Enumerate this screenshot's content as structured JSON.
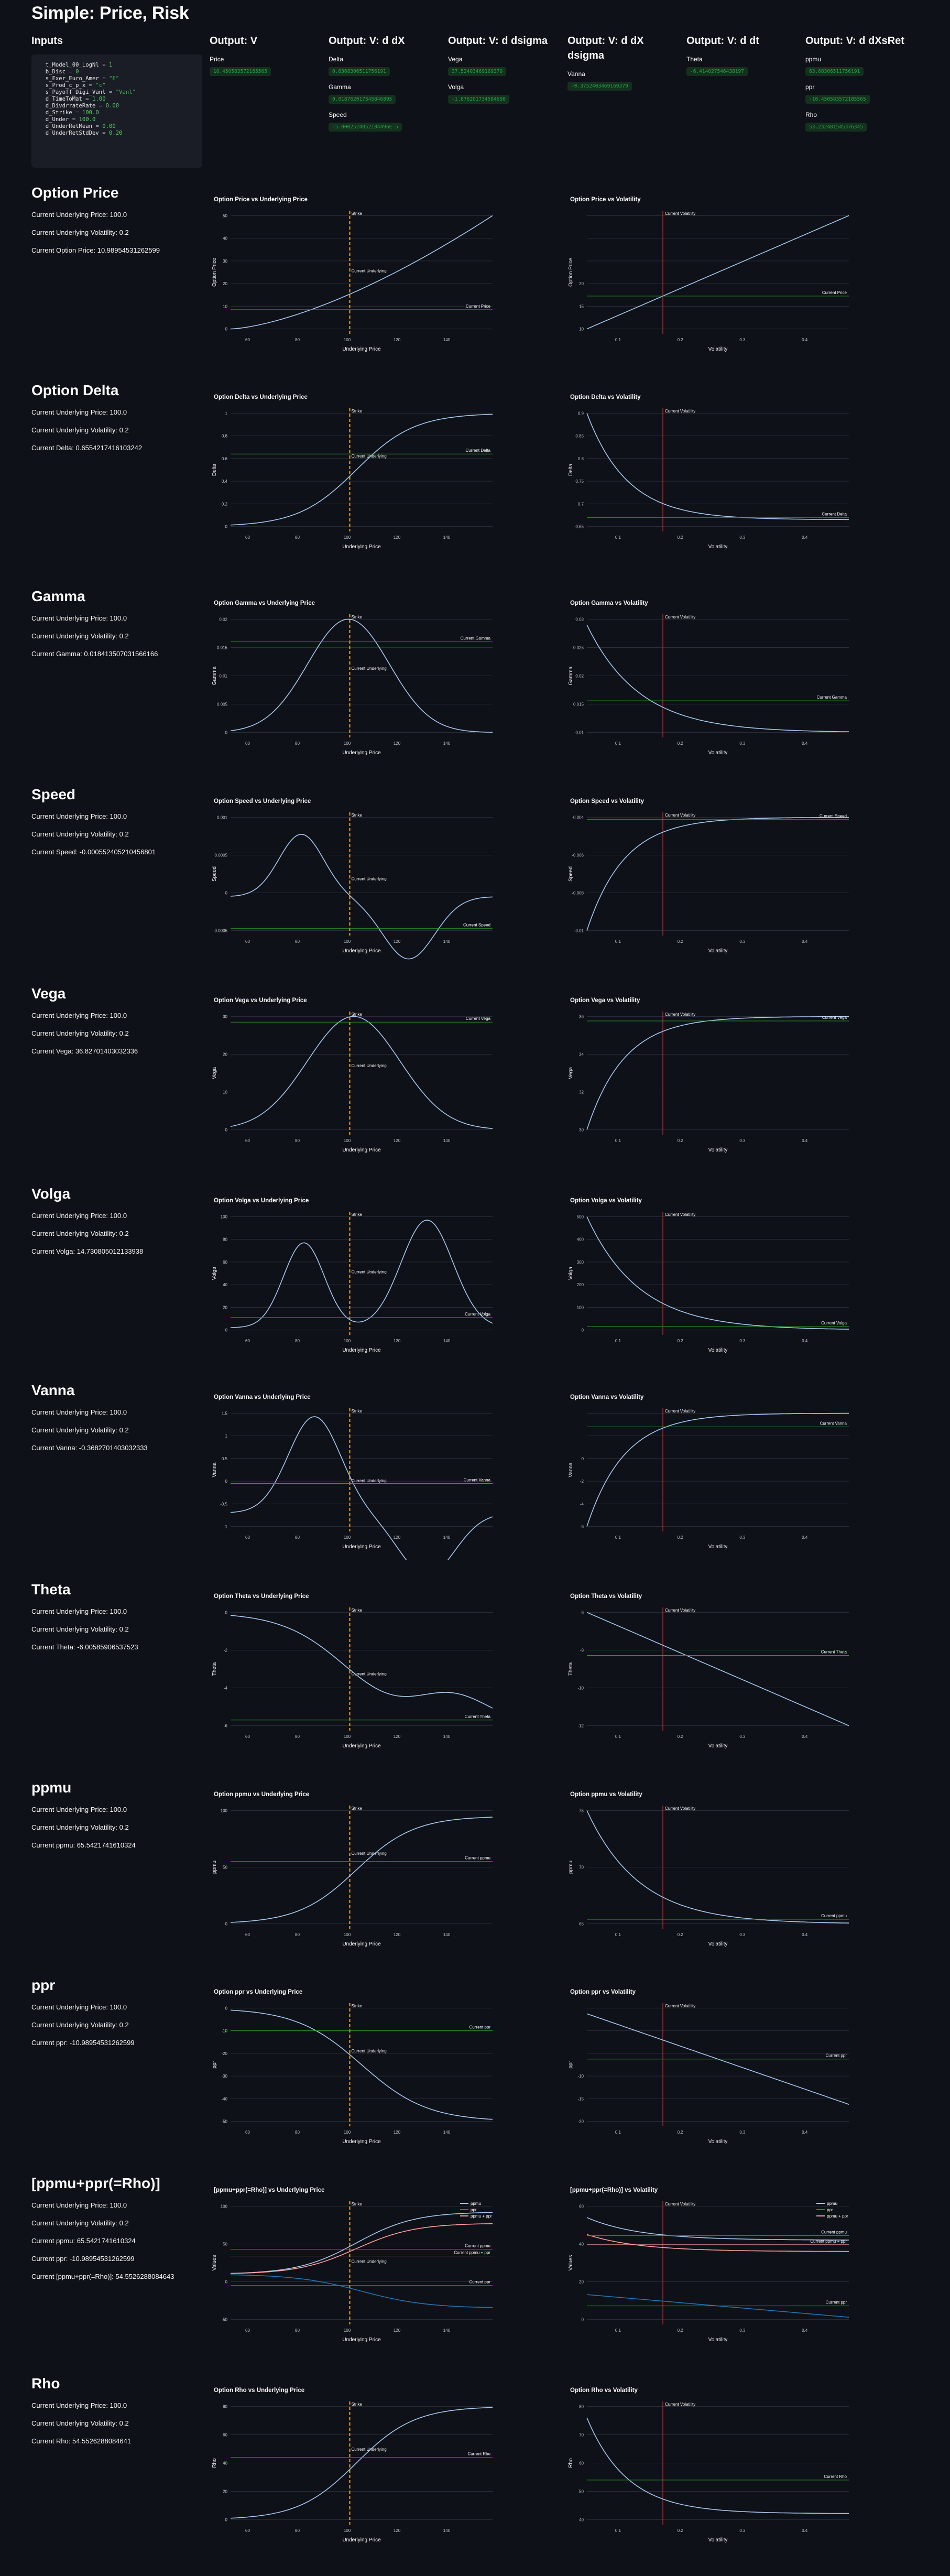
{
  "page": {
    "title": "Simple: Price, Risk"
  },
  "inputs": {
    "title": "Inputs",
    "code": [
      [
        [
          "k",
          "  t_Model_00_LogNl"
        ],
        [
          "o",
          " = "
        ],
        [
          "n",
          "1"
        ]
      ],
      [
        [
          "k",
          "  b_Disc"
        ],
        [
          "o",
          " = "
        ],
        [
          "n",
          "0"
        ]
      ],
      [
        [
          "k",
          "  s_Exer_Euro_Amer"
        ],
        [
          "o",
          " = "
        ],
        [
          "s",
          "\"E\""
        ]
      ],
      [
        [
          "k",
          "  s_Prod_c_p_x"
        ],
        [
          "o",
          " = "
        ],
        [
          "s",
          "\"c\""
        ]
      ],
      [
        [
          "k",
          "  s_Payoff_Digi_Vanl"
        ],
        [
          "o",
          " = "
        ],
        [
          "s",
          "\"Vanl\""
        ]
      ],
      [
        [
          "k",
          "  d_TimeToMat"
        ],
        [
          "o",
          " = "
        ],
        [
          "n",
          "1.00"
        ]
      ],
      [
        [
          "k",
          "  d_DivdrrateRate"
        ],
        [
          "o",
          " = "
        ],
        [
          "n",
          "0.00"
        ]
      ],
      [
        [
          "k",
          "  d_Strike"
        ],
        [
          "o",
          " = "
        ],
        [
          "n",
          "100.0"
        ]
      ],
      [
        [
          "k",
          "  d_Under"
        ],
        [
          "o",
          " = "
        ],
        [
          "n",
          "100.0"
        ]
      ],
      [
        [
          "k",
          "  d_UnderRetMean"
        ],
        [
          "o",
          " = "
        ],
        [
          "n",
          "0.00"
        ]
      ],
      [
        [
          "k",
          "  d_UnderRetStdDev"
        ],
        [
          "o",
          " = "
        ],
        [
          "n",
          "0.20"
        ]
      ]
    ]
  },
  "outputs": [
    {
      "title": "Output: V",
      "items": [
        {
          "label": "Price",
          "value": "10.450583572185565"
        }
      ]
    },
    {
      "title": "Output: V: d dX",
      "items": [
        {
          "label": "Delta",
          "value": "0.6368306511756191"
        },
        {
          "label": "Gamma",
          "value": "0.018762017345846895"
        },
        {
          "label": "Speed",
          "value": "-5.0002524052104496E-5"
        }
      ]
    },
    {
      "title": "Output: V: d dsigma",
      "items": [
        {
          "label": "Vega",
          "value": "37.52403469169379"
        },
        {
          "label": "Volga",
          "value": "-1.876201734584698"
        }
      ]
    },
    {
      "title": "Output: V: d dX dsigma",
      "items": [
        {
          "label": "Vanna",
          "value": "-0.3752403469169379"
        }
      ]
    },
    {
      "title": "Output: V: d dt",
      "items": [
        {
          "label": "Theta",
          "value": "-6.414027546438197"
        }
      ]
    },
    {
      "title": "Output: V: d dXsRet",
      "items": [
        {
          "label": "ppmu",
          "value": "63.68306511756191"
        },
        {
          "label": "ppr",
          "value": "-10.450583572185565"
        },
        {
          "label": "Rho",
          "value": "53.232481545376345"
        }
      ]
    }
  ],
  "sections": [
    {
      "title": "Option Price",
      "lines": [
        "Current Underlying Price: 100.0",
        "Current Underlying Volatility: 0.2",
        "Current Option Price: 10.98954531262599"
      ],
      "greekLabel": "Current Price",
      "left": {
        "title": "Option Price vs Underlying Price",
        "xlabel": "Underlying Price",
        "ylabel": "Option Price"
      },
      "right": {
        "title": "Option Price vs Volatility",
        "xlabel": "Volatility",
        "ylabel": "Option Price"
      }
    },
    {
      "title": "Option Delta",
      "lines": [
        "Current Underlying Price: 100.0",
        "Current Underlying Volatility: 0.2",
        "Current Delta: 0.6554217416103242"
      ],
      "greekLabel": "Current Delta",
      "left": {
        "title": "Option Delta vs Underlying Price",
        "xlabel": "Underlying Price",
        "ylabel": "Delta"
      },
      "right": {
        "title": "Option Delta vs Volatility",
        "xlabel": "Volatility",
        "ylabel": "Delta"
      }
    },
    {
      "title": "Gamma",
      "lines": [
        "Current Underlying Price: 100.0",
        "Current Underlying Volatility: 0.2",
        "Current Gamma: 0.018413507031566166"
      ],
      "greekLabel": "Current Gamma",
      "left": {
        "title": "Option Gamma vs Underlying Price",
        "xlabel": "Underlying Price",
        "ylabel": "Gamma"
      },
      "right": {
        "title": "Option Gamma vs Volatility",
        "xlabel": "Volatility",
        "ylabel": "Gamma"
      }
    },
    {
      "title": "Speed",
      "lines": [
        "Current Underlying Price: 100.0",
        "Current Underlying Volatility: 0.2",
        "Current Speed: -0.000552405210456801"
      ],
      "greekLabel": "Current Speed",
      "left": {
        "title": "Option Speed vs Underlying Price",
        "xlabel": "Underlying Price",
        "ylabel": "Speed"
      },
      "right": {
        "title": "Option Speed vs Volatility",
        "xlabel": "Volatility",
        "ylabel": "Speed"
      }
    },
    {
      "title": "Vega",
      "lines": [
        "Current Underlying Price: 100.0",
        "Current Underlying Volatility: 0.2",
        "Current Vega: 36.82701403032336"
      ],
      "greekLabel": "Current Vega",
      "left": {
        "title": "Option Vega vs Underlying Price",
        "xlabel": "Underlying Price",
        "ylabel": "Vega"
      },
      "right": {
        "title": "Option Vega vs Volatility",
        "xlabel": "Volatility",
        "ylabel": "Vega"
      }
    },
    {
      "title": "Volga",
      "lines": [
        "Current Underlying Price: 100.0",
        "Current Underlying Volatility: 0.2",
        "Current Volga: 14.730805012133938"
      ],
      "greekLabel": "Current Volga",
      "left": {
        "title": "Option Volga vs Underlying Price",
        "xlabel": "Underlying Price",
        "ylabel": "Volga"
      },
      "right": {
        "title": "Option Volga vs Volatility",
        "xlabel": "Volatility",
        "ylabel": "Volga"
      }
    },
    {
      "title": "Vanna",
      "lines": [
        "Current Underlying Price: 100.0",
        "Current Underlying Volatility: 0.2",
        "Current Vanna: -0.3682701403032333"
      ],
      "greekLabel": "Current Vanna",
      "left": {
        "title": "Option Vanna vs Underlying Price",
        "xlabel": "Underlying Price",
        "ylabel": "Vanna"
      },
      "right": {
        "title": "Option Vanna vs Volatility",
        "xlabel": "Volatility",
        "ylabel": "Vanna"
      }
    },
    {
      "title": "Theta",
      "lines": [
        "Current Underlying Price: 100.0",
        "Current Underlying Volatility: 0.2",
        "Current Theta: -6.00585906537523"
      ],
      "greekLabel": "Current Theta",
      "left": {
        "title": "Option Theta vs Underlying Price",
        "xlabel": "Underlying Price",
        "ylabel": "Theta"
      },
      "right": {
        "title": "Option Theta vs Volatility",
        "xlabel": "Volatility",
        "ylabel": "Theta"
      }
    },
    {
      "title": "ppmu",
      "lines": [
        "Current Underlying Price: 100.0",
        "Current Underlying Volatility: 0.2",
        "Current ppmu: 65.5421741610324"
      ],
      "greekLabel": "Current ppmu",
      "left": {
        "title": "Option ppmu vs Underlying Price",
        "xlabel": "Underlying Price",
        "ylabel": "ppmu"
      },
      "right": {
        "title": "Option ppmu vs Volatility",
        "xlabel": "Volatility",
        "ylabel": "ppmu"
      }
    },
    {
      "title": "ppr",
      "lines": [
        "Current Underlying Price: 100.0",
        "Current Underlying Volatility: 0.2",
        "Current ppr: -10.98954531262599"
      ],
      "greekLabel": "Current ppr",
      "left": {
        "title": "Option ppr vs Underlying Price",
        "xlabel": "Underlying Price",
        "ylabel": "ppr"
      },
      "right": {
        "title": "Option ppr vs Volatility",
        "xlabel": "Volatility",
        "ylabel": "ppr"
      }
    },
    {
      "title": "[ppmu+ppr(=Rho)]",
      "lines": [
        "Current Underlying Price: 100.0",
        "Current Underlying Volatility: 0.2",
        "Current ppmu: 65.5421741610324",
        "Current ppr: -10.98954531262599",
        "Current [ppmu+ppr(=Rho)]: 54.5526288084643"
      ],
      "greekLabel": "Current ppmu",
      "left": {
        "title": "[ppmu+ppr(=Rho)] vs Underlying Price",
        "xlabel": "Underlying Price",
        "ylabel": "Values"
      },
      "right": {
        "title": "[ppmu+ppr(=Rho)] vs Volatility",
        "xlabel": "Volatility",
        "ylabel": "Values"
      },
      "legend": [
        "ppmu",
        "ppr",
        "ppmu + ppr"
      ],
      "extraLabels": [
        "Current ppmu",
        "Current ppr",
        "Current ppmu + ppr"
      ]
    },
    {
      "title": "Rho",
      "lines": [
        "Current Underlying Price: 100.0",
        "Current Underlying Volatility: 0.2",
        "Current Rho: 54.5526288084641"
      ],
      "greekLabel": "Current Rho",
      "left": {
        "title": "Option Rho vs Underlying Price",
        "xlabel": "Underlying Price",
        "ylabel": "Rho"
      },
      "right": {
        "title": "Option Rho vs Volatility",
        "xlabel": "Volatility",
        "ylabel": "Rho"
      }
    }
  ],
  "annotations": {
    "strike": "Strike",
    "current_underlying": "Current Underlying",
    "current_volatility": "Current Volatility"
  },
  "colors": {
    "line": "#a8c8f0",
    "strike": "#f5a623",
    "current": "#2ca02c",
    "vol": "#d62728",
    "ppmu": "#a8c8f0",
    "ppr": "#1f77b4",
    "sum": "#ff9f9f"
  },
  "chart_data": [
    {
      "type": "line",
      "id": "price",
      "x_left": [
        60,
        150
      ],
      "xticks_left": [
        60,
        80,
        100,
        120,
        140
      ],
      "yticks_left": [
        0,
        10,
        20,
        30,
        40,
        50
      ],
      "xticks_right": [
        0.1,
        0.2,
        0.3,
        0.4
      ],
      "yticks_right": [
        10,
        15,
        20
      ]
    },
    {
      "type": "line",
      "id": "delta",
      "xticks_left": [
        60,
        80,
        100,
        120,
        140
      ],
      "yticks_left": [
        0,
        0.2,
        0.4,
        0.6,
        0.8,
        1
      ],
      "xticks_right": [
        0.1,
        0.2,
        0.3,
        0.4
      ],
      "yticks_right": [
        0.65,
        0.7,
        0.75,
        0.8,
        0.85,
        0.9
      ]
    },
    {
      "type": "line",
      "id": "gamma",
      "xticks_left": [
        60,
        80,
        100,
        120,
        140
      ],
      "yticks_left": [
        0,
        0.005,
        0.01,
        0.015,
        0.02
      ],
      "xticks_right": [
        0.1,
        0.2,
        0.3,
        0.4
      ],
      "yticks_right": [
        0.01,
        0.015,
        0.02,
        0.025,
        0.03,
        0.035
      ]
    },
    {
      "type": "line",
      "id": "speed",
      "xticks_left": [
        60,
        80,
        100,
        120,
        140
      ],
      "yticks_left": [
        -0.0005,
        0,
        0.0005,
        0.001
      ],
      "xticks_right": [
        0.1,
        0.2,
        0.3,
        0.4
      ],
      "yticks_right": [
        -0.01,
        -0.008,
        -0.006,
        -0.004,
        -0.002,
        0
      ]
    },
    {
      "type": "line",
      "id": "vega",
      "xticks_left": [
        60,
        80,
        100,
        120,
        140
      ],
      "yticks_left": [
        0,
        10,
        20,
        30
      ],
      "xticks_right": [
        0.1,
        0.2,
        0.3,
        0.4
      ],
      "yticks_right": [
        30,
        32,
        34,
        36,
        38
      ]
    },
    {
      "type": "line",
      "id": "volga",
      "xticks_left": [
        60,
        80,
        100,
        120,
        140
      ],
      "yticks_left": [
        0,
        20,
        40,
        60,
        80,
        100
      ],
      "xticks_right": [
        0.1,
        0.2,
        0.3,
        0.4
      ],
      "yticks_right": [
        0,
        100,
        200,
        300,
        400,
        500
      ]
    },
    {
      "type": "line",
      "id": "vanna",
      "xticks_left": [
        60,
        80,
        100,
        120,
        140
      ],
      "yticks_left": [
        -1,
        -0.5,
        0,
        0.5,
        1,
        1.5
      ],
      "xticks_right": [
        0.1,
        0.2,
        0.3,
        0.4
      ],
      "yticks_right": [
        -6,
        -4,
        -2,
        0
      ]
    },
    {
      "type": "line",
      "id": "theta",
      "xticks_left": [
        60,
        80,
        100,
        120,
        140
      ],
      "yticks_left": [
        -6,
        -4,
        -2,
        0
      ],
      "xticks_right": [
        0.1,
        0.2,
        0.3,
        0.4
      ],
      "yticks_right": [
        -12,
        -10,
        -8,
        -6,
        -4,
        -2
      ]
    },
    {
      "type": "line",
      "id": "ppmu",
      "xticks_left": [
        60,
        80,
        100,
        120,
        140
      ],
      "yticks_left": [
        0,
        50,
        100
      ],
      "xticks_right": [
        0.1,
        0.2,
        0.3,
        0.4
      ],
      "yticks_right": [
        65,
        70,
        75,
        80,
        85,
        90
      ]
    },
    {
      "type": "line",
      "id": "ppr",
      "xticks_left": [
        60,
        80,
        100,
        120,
        140
      ],
      "yticks_left": [
        -50,
        -40,
        -30,
        -20,
        -10,
        0
      ],
      "xticks_right": [
        0.1,
        0.2,
        0.3,
        0.4
      ],
      "yticks_right": [
        -20,
        -15,
        -10
      ]
    },
    {
      "type": "line",
      "id": "rho",
      "xticks_left": [
        60,
        80,
        100,
        120,
        140
      ],
      "yticks_left": [
        -50,
        0,
        50,
        100
      ],
      "xticks_right": [
        0.1,
        0.2,
        0.3,
        0.4
      ],
      "yticks_right": [
        0,
        20,
        40,
        60,
        80
      ]
    },
    {
      "type": "line",
      "id": "rho2",
      "xticks_left": [
        60,
        80,
        100,
        120,
        140
      ],
      "yticks_left": [
        0,
        20,
        40,
        60,
        80
      ],
      "xticks_right": [
        0.1,
        0.2,
        0.3,
        0.4
      ],
      "yticks_right": [
        40,
        50,
        60,
        70,
        80
      ]
    }
  ]
}
